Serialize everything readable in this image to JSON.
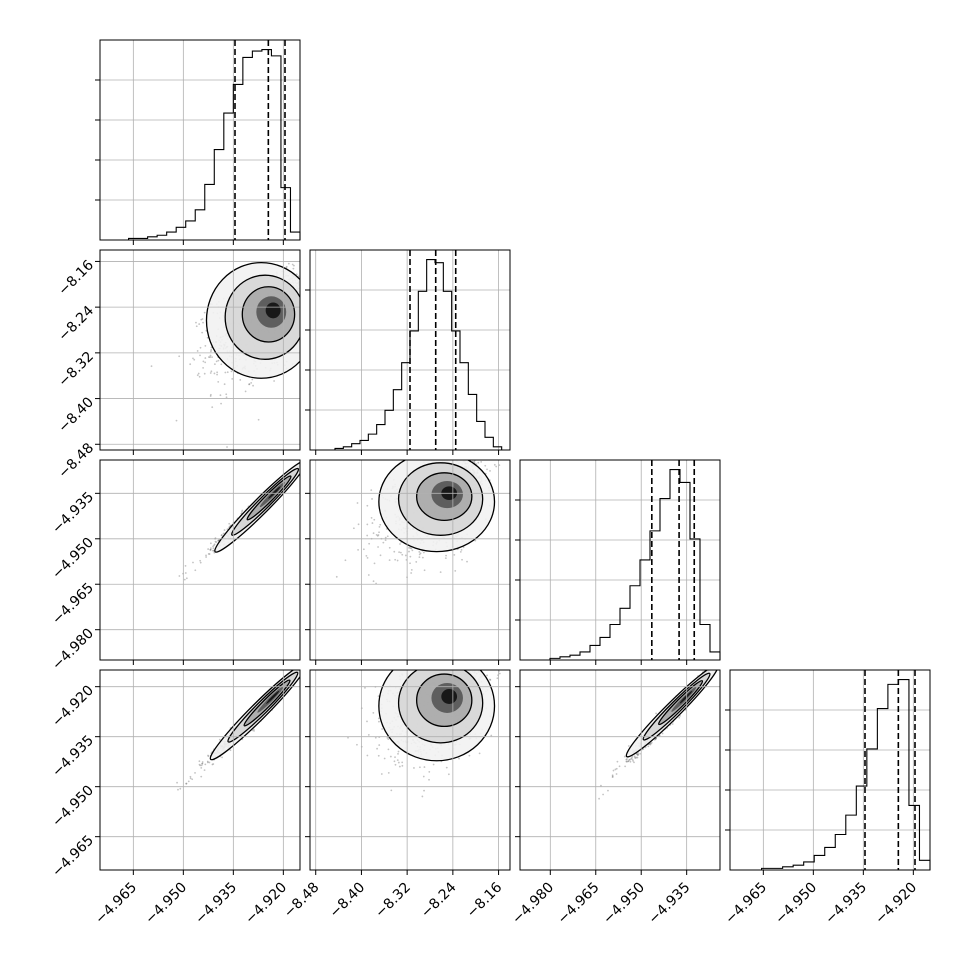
{
  "chart_data": {
    "type": "corner",
    "parameters": [
      {
        "index": 0,
        "range": [
          -4.975,
          -4.915
        ],
        "tick_values": [
          -4.965,
          -4.95,
          -4.935,
          -4.92
        ],
        "tick_labels": [
          "−4.965",
          "−4.950",
          "−4.935",
          "−4.920"
        ],
        "quantiles": [
          -4.9345,
          -4.9245,
          -4.9195
        ],
        "hist_bins": [
          0,
          0,
          0,
          1,
          1,
          2,
          3,
          5,
          8,
          12,
          19,
          35,
          57,
          80,
          98,
          115,
          119,
          120,
          116,
          33,
          5
        ]
      },
      {
        "index": 1,
        "range": [
          -8.49,
          -8.14
        ],
        "tick_values": [
          -8.48,
          -8.4,
          -8.32,
          -8.24,
          -8.16
        ],
        "tick_labels": [
          "−8.48",
          "−8.40",
          "−8.32",
          "−8.24",
          "−8.16"
        ],
        "quantiles": [
          -8.315,
          -8.27,
          -8.235
        ],
        "hist_bins": [
          0,
          0,
          0,
          1,
          2,
          4,
          6,
          10,
          16,
          25,
          38,
          55,
          75,
          100,
          120,
          118,
          100,
          75,
          55,
          35,
          18,
          8,
          2,
          0
        ]
      },
      {
        "index": 2,
        "range": [
          -4.99,
          -4.924
        ],
        "tick_values": [
          -4.98,
          -4.965,
          -4.95,
          -4.935
        ],
        "tick_labels": [
          "−4.980",
          "−4.965",
          "−4.950",
          "−4.935"
        ],
        "quantiles": [
          -4.9465,
          -4.9375,
          -4.9325
        ],
        "hist_bins": [
          0,
          0,
          0,
          1,
          2,
          3,
          5,
          9,
          14,
          22,
          32,
          46,
          62,
          80,
          100,
          118,
          110,
          75,
          22,
          5
        ]
      },
      {
        "index": 3,
        "range": [
          -4.975,
          -4.915
        ],
        "tick_values": [
          -4.965,
          -4.95,
          -4.935,
          -4.92
        ],
        "tick_labels": [
          "−4.965",
          "−4.950",
          "−4.935",
          "−4.920"
        ],
        "quantiles": [
          -4.9345,
          -4.9245,
          -4.9195
        ],
        "hist_bins": [
          0,
          0,
          0,
          1,
          1,
          2,
          3,
          5,
          9,
          14,
          22,
          34,
          52,
          75,
          100,
          115,
          118,
          40,
          6
        ]
      }
    ],
    "pairs": [
      {
        "row": 1,
        "col": 0,
        "mean": [
          -4.9228,
          -8.241
        ],
        "sd": [
          0.0065,
          0.04
        ],
        "rho": 0.55,
        "density_peak": [
          -4.9225,
          -8.243
        ]
      },
      {
        "row": 2,
        "col": 0,
        "mean": [
          -4.922,
          -4.934
        ],
        "sd": [
          0.0065,
          0.0065
        ],
        "rho": 0.99,
        "density_peak": [
          -4.922,
          -4.934
        ]
      },
      {
        "row": 2,
        "col": 1,
        "mean": [
          -8.241,
          -4.9345
        ],
        "sd": [
          0.04,
          0.0065
        ],
        "rho": 0.5,
        "density_peak": [
          -8.243,
          -4.9345
        ]
      },
      {
        "row": 3,
        "col": 0,
        "mean": [
          -4.9225,
          -4.9225
        ],
        "sd": [
          0.0065,
          0.0065
        ],
        "rho": 0.99,
        "density_peak": [
          -4.9225,
          -4.9225
        ]
      },
      {
        "row": 3,
        "col": 1,
        "mean": [
          -8.241,
          -4.9225
        ],
        "sd": [
          0.04,
          0.0065
        ],
        "rho": 0.45,
        "density_peak": [
          -8.243,
          -4.9225
        ]
      },
      {
        "row": 3,
        "col": 2,
        "mean": [
          -4.9345,
          -4.9225
        ],
        "sd": [
          0.0065,
          0.0065
        ],
        "rho": 0.99,
        "density_peak": [
          -4.9345,
          -4.9225
        ]
      }
    ],
    "grid": true,
    "colors": {
      "frame": "#000000",
      "grid": "#b0b0b0",
      "points": "#555555",
      "density_dark": "#000000",
      "contour": "#000000"
    }
  }
}
